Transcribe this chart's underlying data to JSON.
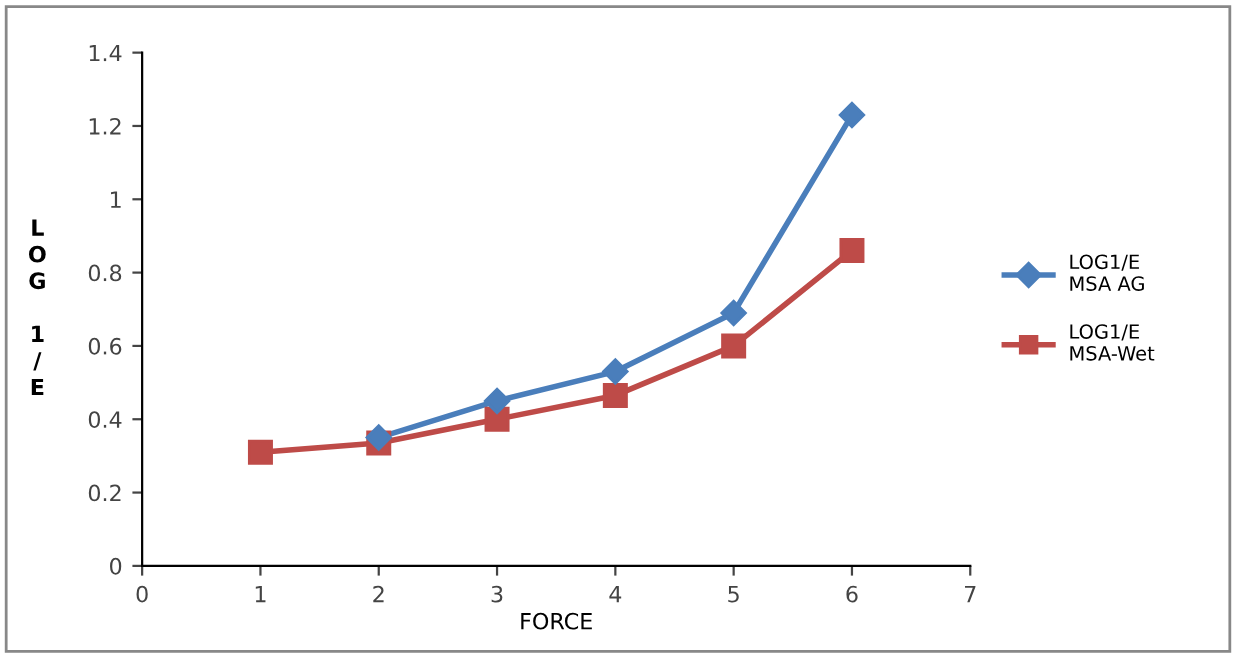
{
  "chart_data": {
    "type": "line",
    "xlabel": "FORCE",
    "ylabel": "LOG 1/E",
    "xlim": [
      0,
      7
    ],
    "xticks": [
      0,
      1,
      2,
      3,
      4,
      5,
      6,
      7
    ],
    "ylim": [
      0,
      1.4
    ],
    "yticks": [
      0,
      0.2,
      0.4,
      0.6,
      0.8,
      1,
      1.2,
      1.4
    ],
    "grid": false,
    "legend": "right",
    "line_style": "solid",
    "series": [
      {
        "name": "LOG1/E MSA AG",
        "color": "#4a7ebb",
        "marker": "diamond",
        "x": [
          2,
          3,
          4,
          5,
          6
        ],
        "values": [
          0.35,
          0.45,
          0.53,
          0.69,
          1.23
        ]
      },
      {
        "name": "LOG1/E MSA-Wet",
        "color": "#be4b48",
        "marker": "square",
        "x": [
          1,
          2,
          3,
          4,
          5,
          6
        ],
        "values": [
          0.31,
          0.335,
          0.4,
          0.465,
          0.6,
          0.86
        ]
      }
    ]
  }
}
